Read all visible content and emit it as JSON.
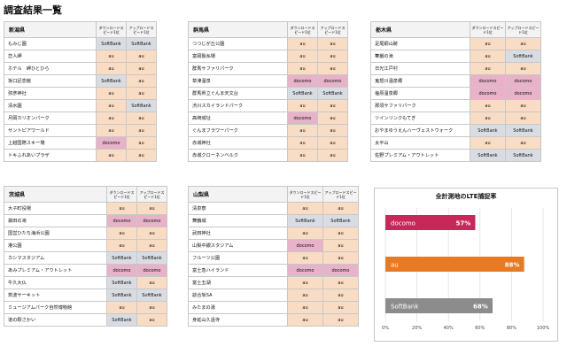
{
  "page_title": "調査結果一覧",
  "headers": {
    "download": "ダウンロードスピード1位",
    "upload": "アップロードスピード1位"
  },
  "colors": {
    "au": "#e87a24",
    "docomo": "#c8275a",
    "softbank": "#8c8c8c",
    "au_cell": "#f9dcc4",
    "docomo_cell": "#e8b2c8",
    "softbank_cell": "#d9dde3"
  },
  "tables": [
    {
      "prefecture": "新潟県",
      "rows": [
        {
          "place": "もみじ園",
          "down": "SoftBank",
          "up": "SoftBank"
        },
        {
          "place": "恋人岬",
          "down": "au",
          "up": "au"
        },
        {
          "place": "ホテル　岬ひとひら",
          "down": "au",
          "up": "au"
        },
        {
          "place": "坂口記念館",
          "down": "SoftBank",
          "up": "au"
        },
        {
          "place": "弥彦神社",
          "down": "au",
          "up": "au"
        },
        {
          "place": "清水園",
          "down": "au",
          "up": "SoftBank"
        },
        {
          "place": "月岡カリオンパーク",
          "down": "au",
          "up": "au"
        },
        {
          "place": "サントピアワールド",
          "down": "au",
          "up": "au"
        },
        {
          "place": "上越国際スキー場",
          "down": "docomo",
          "up": "au"
        },
        {
          "place": "トキふれあいプラザ",
          "down": "au",
          "up": "au"
        }
      ]
    },
    {
      "prefecture": "群馬県",
      "rows": [
        {
          "place": "つつじが丘公園",
          "down": "au",
          "up": "au"
        },
        {
          "place": "富岡製糸場",
          "down": "au",
          "up": "au"
        },
        {
          "place": "群馬サファリパーク",
          "down": "au",
          "up": "au"
        },
        {
          "place": "草津温泉",
          "down": "docomo",
          "up": "docomo"
        },
        {
          "place": "群馬県立ぐんま天文台",
          "down": "SoftBank",
          "up": "SoftBank"
        },
        {
          "place": "渋川スカイランドパーク",
          "down": "au",
          "up": "au"
        },
        {
          "place": "高崎城址",
          "down": "docomo",
          "up": "au"
        },
        {
          "place": "ぐんまフラワーパーク",
          "down": "au",
          "up": "au"
        },
        {
          "place": "赤城神社",
          "down": "au",
          "up": "au"
        },
        {
          "place": "赤城クローネンベルク",
          "down": "au",
          "up": "au"
        }
      ]
    },
    {
      "prefecture": "栃木県",
      "rows": [
        {
          "place": "足尾銅山跡",
          "down": "au",
          "up": "au"
        },
        {
          "place": "華厳の滝",
          "down": "au",
          "up": "SoftBank"
        },
        {
          "place": "日光江戸村",
          "down": "au",
          "up": "au"
        },
        {
          "place": "鬼怒川温泉郷",
          "down": "docomo",
          "up": "docomo"
        },
        {
          "place": "塩原温泉郷",
          "down": "docomo",
          "up": "docomo"
        },
        {
          "place": "那須サファリパーク",
          "down": "au",
          "up": "au"
        },
        {
          "place": "ツインリンクもてぎ",
          "down": "au",
          "up": "au"
        },
        {
          "place": "おやまゆうえんハーヴェストウォーク",
          "down": "SoftBank",
          "up": "SoftBank"
        },
        {
          "place": "太平山",
          "down": "au",
          "up": "au"
        },
        {
          "place": "佐野プレミアム・アウトレット",
          "down": "SoftBank",
          "up": "SoftBank"
        }
      ]
    },
    {
      "prefecture": "茨城県",
      "rows": [
        {
          "place": "大子町役場",
          "down": "au",
          "up": "au"
        },
        {
          "place": "袋田の滝",
          "down": "docomo",
          "up": "docomo"
        },
        {
          "place": "国営ひたち海浜公園",
          "down": "au",
          "up": "au"
        },
        {
          "place": "港公園",
          "down": "au",
          "up": "au"
        },
        {
          "place": "カシマスタジアム",
          "down": "SoftBank",
          "up": "SoftBank"
        },
        {
          "place": "あみプレミアム・アウトレット",
          "down": "docomo",
          "up": "docomo"
        },
        {
          "place": "牛久大仏",
          "down": "SoftBank",
          "up": "au"
        },
        {
          "place": "筑波サーキット",
          "down": "SoftBank",
          "up": "SoftBank"
        },
        {
          "place": "ミュージアムパーク自然博物館",
          "down": "au",
          "up": "au"
        },
        {
          "place": "道の駅さかい",
          "down": "SoftBank",
          "up": "au"
        }
      ]
    },
    {
      "prefecture": "山梨県",
      "rows": [
        {
          "place": "清泉寮",
          "down": "au",
          "up": "au"
        },
        {
          "place": "舞鶴城",
          "down": "SoftBank",
          "up": "SoftBank"
        },
        {
          "place": "武田神社",
          "down": "au",
          "up": "au"
        },
        {
          "place": "山梨中銀スタジアム",
          "down": "docomo",
          "up": "au"
        },
        {
          "place": "フルーツ公園",
          "down": "au",
          "up": "au"
        },
        {
          "place": "富士急ハイランド",
          "down": "docomo",
          "up": "docomo"
        },
        {
          "place": "富士五湖",
          "down": "au",
          "up": "au"
        },
        {
          "place": "談合坂SA",
          "down": "au",
          "up": "au"
        },
        {
          "place": "みたまの湯",
          "down": "au",
          "up": "au"
        },
        {
          "place": "身延山久遠寺",
          "down": "au",
          "up": "au"
        }
      ]
    }
  ],
  "chart_data": {
    "type": "bar",
    "orientation": "horizontal",
    "title": "全計測地のLTE捕捉率",
    "categories": [
      "docomo",
      "au",
      "SoftBank"
    ],
    "values": [
      57,
      88,
      68
    ],
    "value_labels": [
      "57%",
      "88%",
      "68%"
    ],
    "colors": [
      "#c8275a",
      "#e87a24",
      "#8c8c8c"
    ],
    "xlim": [
      0,
      100
    ],
    "x_ticks": [
      "0%",
      "20%",
      "40%",
      "60%",
      "80%",
      "100%"
    ],
    "grid": true
  }
}
